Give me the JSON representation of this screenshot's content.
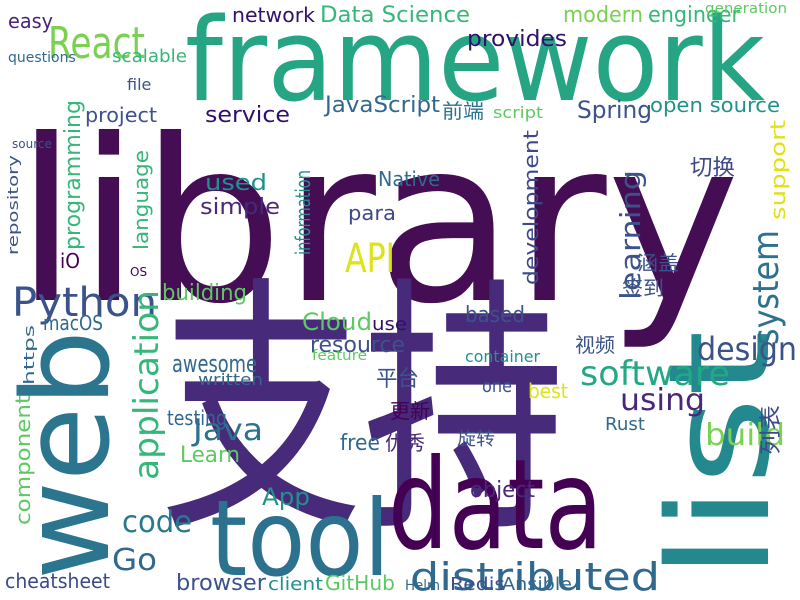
{
  "words": [
    "library",
    "framework",
    "支持",
    "web",
    "list",
    "data",
    "tool",
    "distributed",
    "API",
    "Python",
    "React",
    "Data Science",
    "network",
    "modern",
    "engineer",
    "easy",
    "generation",
    "provides",
    "JavaScript",
    "前端",
    "Spring",
    "open source",
    "project",
    "service",
    "script",
    "切换",
    "software",
    "design",
    "using",
    "build",
    "Java",
    "Learn",
    "App",
    "code",
    "Go",
    "cheatsheet",
    "browser",
    "client",
    "GitHub",
    "Helm",
    "Redis",
    "Ansible",
    "Cloud",
    "based",
    "container",
    "resource",
    "use",
    "awesome",
    "written",
    "testing",
    "building",
    "simple",
    "used",
    "macOS",
    "free",
    "优秀",
    "旋转",
    "更新",
    "平台",
    "para",
    "Native",
    "Rust",
    "best",
    "one",
    "object",
    "视频",
    "签到",
    "涵盖",
    "feature",
    "iO",
    "OS",
    "file",
    "scalable",
    "questions",
    "source",
    "programming",
    "language",
    "application",
    "component",
    "system",
    "learning",
    "support",
    "development",
    "information",
    "列表",
    "repository",
    "https"
  ]
}
